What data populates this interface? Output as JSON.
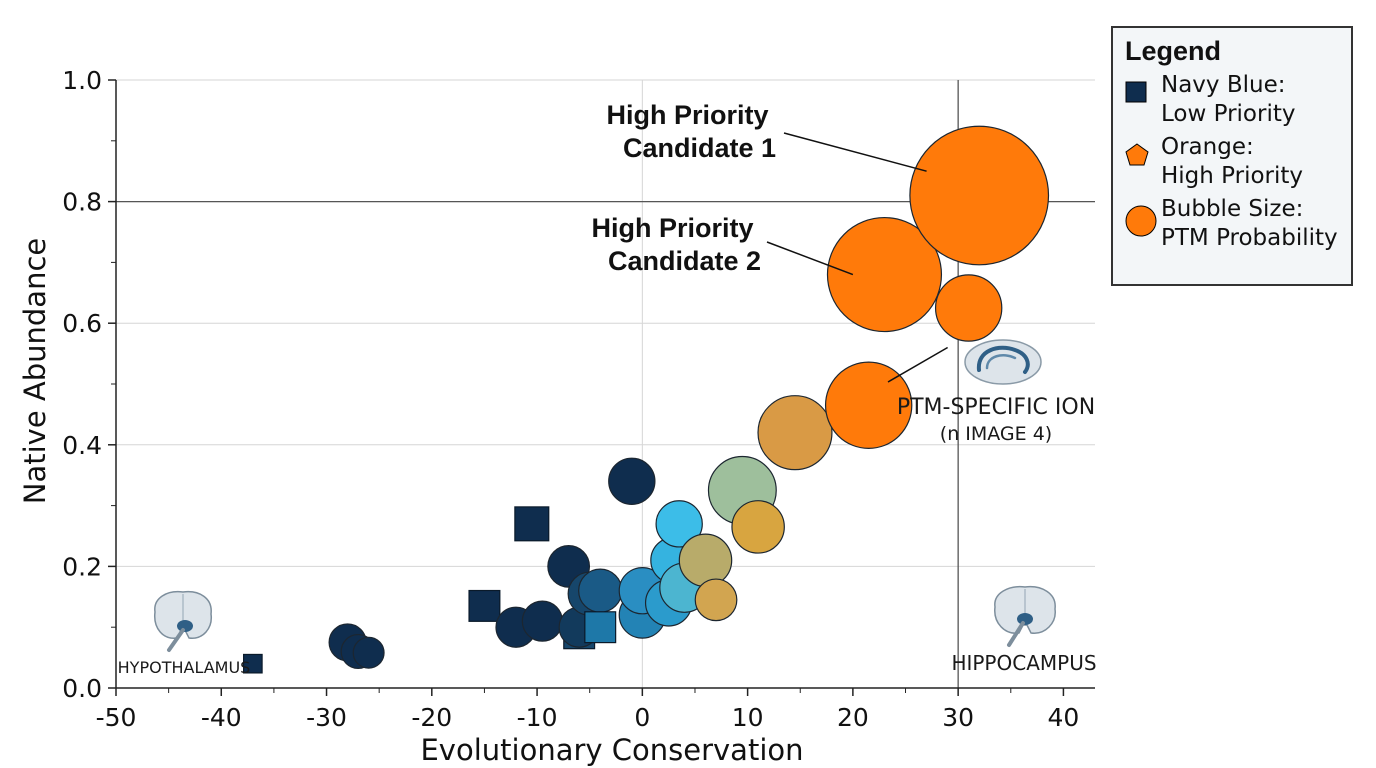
{
  "chart_data": {
    "type": "scatter",
    "xlabel": "Evolutionary Conservation",
    "ylabel": "Native Abundance",
    "xlim": [
      -50,
      43
    ],
    "ylim": [
      0,
      1.0
    ],
    "x_ticks": [
      -50,
      -40,
      -30,
      -20,
      -10,
      0,
      10,
      20,
      30,
      40
    ],
    "y_ticks": [
      0.0,
      0.2,
      0.4,
      0.6,
      0.8,
      1.0
    ],
    "x_tick_labels": [
      "-50",
      "-40",
      "-30",
      "-20",
      "-10",
      "0",
      "10",
      "20",
      "30",
      "40"
    ],
    "y_tick_labels": [
      "0.0",
      "0.2",
      "0.4",
      "0.6",
      "0.8",
      "1.0"
    ],
    "reference_lines": {
      "x": 30,
      "y": 0.8
    },
    "grid": true,
    "legend_placement": "top-right, outside plot",
    "colors": {
      "navy": "#0f2d4e",
      "cyan": "#3cbde8",
      "orange": "#ff7a0a",
      "text": "#111111"
    },
    "points": [
      {
        "x": -37,
        "y": 0.04,
        "size": 0.12,
        "shape": "square",
        "color": "#0f2d4e"
      },
      {
        "x": -28,
        "y": 0.075,
        "size": 0.24,
        "shape": "circle",
        "color": "#0f2d4e"
      },
      {
        "x": -27,
        "y": 0.06,
        "size": 0.22,
        "shape": "circle",
        "color": "#0f2d4e"
      },
      {
        "x": -26,
        "y": 0.058,
        "size": 0.2,
        "shape": "circle",
        "color": "#0f2d4e"
      },
      {
        "x": -15,
        "y": 0.135,
        "size": 0.2,
        "shape": "square",
        "color": "#0f2d4e"
      },
      {
        "x": -12,
        "y": 0.1,
        "size": 0.26,
        "shape": "circle",
        "color": "#0f2d4e"
      },
      {
        "x": -9.5,
        "y": 0.11,
        "size": 0.26,
        "shape": "circle",
        "color": "#0f2d4e"
      },
      {
        "x": -10.5,
        "y": 0.27,
        "size": 0.22,
        "shape": "square",
        "color": "#0f2d4e"
      },
      {
        "x": -7,
        "y": 0.2,
        "size": 0.27,
        "shape": "circle",
        "color": "#0f2d4e"
      },
      {
        "x": -6,
        "y": 0.09,
        "size": 0.2,
        "shape": "square",
        "color": "#16466b"
      },
      {
        "x": -6,
        "y": 0.1,
        "size": 0.26,
        "shape": "circle",
        "color": "#123a5c"
      },
      {
        "x": -5,
        "y": 0.155,
        "size": 0.28,
        "shape": "circle",
        "color": "#16466b"
      },
      {
        "x": -4,
        "y": 0.16,
        "size": 0.28,
        "shape": "circle",
        "color": "#1a5a86"
      },
      {
        "x": -4,
        "y": 0.1,
        "size": 0.2,
        "shape": "square",
        "color": "#1e78a8"
      },
      {
        "x": -1,
        "y": 0.34,
        "size": 0.3,
        "shape": "circle",
        "color": "#0f2d4e"
      },
      {
        "x": 0,
        "y": 0.12,
        "size": 0.3,
        "shape": "circle",
        "color": "#2383b5"
      },
      {
        "x": 0,
        "y": 0.16,
        "size": 0.3,
        "shape": "circle",
        "color": "#2a8ec2"
      },
      {
        "x": 2.5,
        "y": 0.14,
        "size": 0.3,
        "shape": "circle",
        "color": "#2b9bcc"
      },
      {
        "x": 3,
        "y": 0.21,
        "size": 0.3,
        "shape": "circle",
        "color": "#35b3e0"
      },
      {
        "x": 3.5,
        "y": 0.27,
        "size": 0.3,
        "shape": "circle",
        "color": "#3cbde8"
      },
      {
        "x": 4,
        "y": 0.165,
        "size": 0.32,
        "shape": "circle",
        "color": "#4cb5d0"
      },
      {
        "x": 6,
        "y": 0.21,
        "size": 0.34,
        "shape": "circle",
        "color": "#b8ab6a"
      },
      {
        "x": 7,
        "y": 0.145,
        "size": 0.27,
        "shape": "circle",
        "color": "#d2a550"
      },
      {
        "x": 9.5,
        "y": 0.325,
        "size": 0.44,
        "shape": "circle",
        "color": "#9ebf9c"
      },
      {
        "x": 11,
        "y": 0.265,
        "size": 0.34,
        "shape": "circle",
        "color": "#d8a540"
      },
      {
        "x": 14.5,
        "y": 0.42,
        "size": 0.48,
        "shape": "circle",
        "color": "#d99a45"
      },
      {
        "x": 21.5,
        "y": 0.465,
        "size": 0.56,
        "shape": "circle",
        "color": "#ff7a0a"
      },
      {
        "x": 23,
        "y": 0.68,
        "size": 0.74,
        "shape": "circle",
        "color": "#ff7a0a"
      },
      {
        "x": 31,
        "y": 0.625,
        "size": 0.43,
        "shape": "circle",
        "color": "#ff7a0a"
      },
      {
        "x": 32,
        "y": 0.81,
        "size": 0.9,
        "shape": "circle",
        "color": "#ff7a0a"
      }
    ],
    "annotations": [
      {
        "text": "High Priority\nCandidate 1",
        "x": 16,
        "y": 0.92,
        "target": [
          27,
          0.85
        ]
      },
      {
        "text": "High Priority\nCandidate 2",
        "x": 15,
        "y": 0.73,
        "target": [
          20,
          0.68
        ]
      },
      {
        "text": "PTM-SPECIFIC ION",
        "x": 36,
        "y": 0.455,
        "target": [
          29,
          0.56
        ]
      },
      {
        "text": "(n IMAGE 4)",
        "x": 36,
        "y": 0.415
      },
      {
        "text": "HYPOTHALAMUS",
        "x": -44,
        "y": 0.035
      },
      {
        "text": "HIPPOCAMPUS",
        "x": 36,
        "y": 0.038
      }
    ],
    "legend": {
      "title": "Legend",
      "entries": [
        {
          "symbol": "square",
          "color": "#0f2d4e",
          "label": "Navy Blue:\nLow Priority"
        },
        {
          "symbol": "pentagon",
          "color": "#ff7a0a",
          "label": "Orange:\nHigh Priority"
        },
        {
          "symbol": "circle",
          "color": "#ff7a0a",
          "label": "Bubble Size:\nPTM Probability"
        }
      ]
    },
    "icons": [
      "brain-hypothalamus-icon",
      "brain-hippocampus-icon",
      "hippocampus-icon"
    ]
  }
}
